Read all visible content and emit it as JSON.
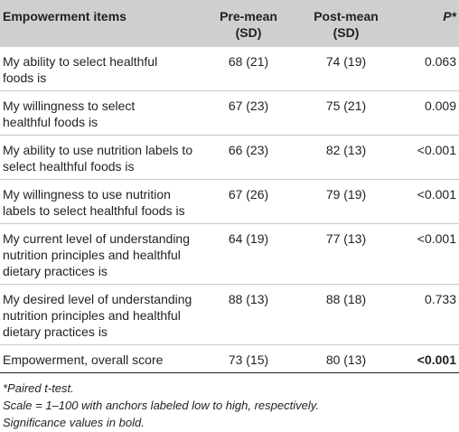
{
  "table": {
    "headers": {
      "item": "Empowerment items",
      "pre_line1": "Pre-mean",
      "pre_line2": "(SD)",
      "post_line1": "Post-mean",
      "post_line2": "(SD)",
      "p": "P*"
    },
    "rows": [
      {
        "item_l1": "My ability to select healthful",
        "item_l2": "foods is",
        "item_l3": "",
        "pre": "68 (21)",
        "post": "74 (19)",
        "p": "0.063"
      },
      {
        "item_l1": "My willingness to select",
        "item_l2": "healthful foods is",
        "item_l3": "",
        "pre": "67 (23)",
        "post": "75 (21)",
        "p": "0.009"
      },
      {
        "item_l1": "My ability to use nutrition labels to",
        "item_l2": "select healthful foods is",
        "item_l3": "",
        "pre": "66 (23)",
        "post": "82 (13)",
        "p": "<0.001"
      },
      {
        "item_l1": "My willingness to use nutrition",
        "item_l2": "labels to select healthful foods is",
        "item_l3": "",
        "pre": "67 (26)",
        "post": "79 (19)",
        "p": "<0.001"
      },
      {
        "item_l1": "My current level of understanding",
        "item_l2": "nutrition principles and healthful",
        "item_l3": "dietary practices is",
        "pre": "64 (19)",
        "post": "77 (13)",
        "p": "<0.001"
      },
      {
        "item_l1": "My desired level of understanding",
        "item_l2": "nutrition principles and healthful",
        "item_l3": "dietary practices is",
        "pre": "88 (13)",
        "post": "88 (18)",
        "p": "0.733"
      },
      {
        "item_l1": "Empowerment, overall score",
        "item_l2": "",
        "item_l3": "",
        "pre": "73 (15)",
        "post": "80 (13)",
        "p": "<0.001",
        "p_bold": true
      }
    ]
  },
  "notes": {
    "line1": "*Paired t-test.",
    "line2": "Scale = 1–100 with anchors labeled low to high, respectively.",
    "line3": "Significance values in bold."
  }
}
